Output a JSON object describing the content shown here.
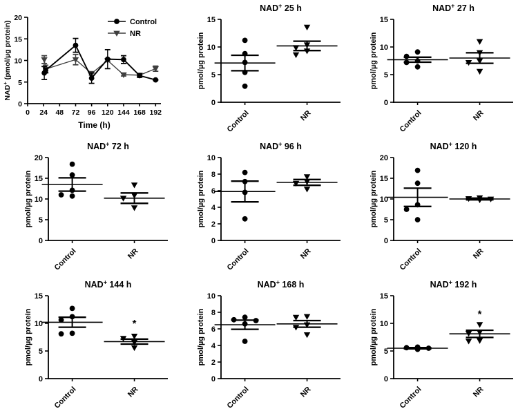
{
  "figure": {
    "description": "NAD+ levels, Control vs NR, time course and per-timepoint scatter plots",
    "colors": {
      "control": "#000000",
      "nr": "#3f3f3f",
      "axis": "#000000",
      "background": "#ffffff"
    },
    "legend": {
      "items": [
        "Control",
        "NR"
      ]
    }
  },
  "chart_data": [
    {
      "id": "timecourse",
      "type": "line",
      "title": "",
      "xlabel": "Time (h)",
      "ylabel": "NAD+ (pmol/µg protein)",
      "xlim": [
        0,
        200
      ],
      "ylim": [
        0,
        20
      ],
      "xticks": [
        0,
        24,
        48,
        72,
        96,
        120,
        144,
        168,
        192
      ],
      "yticks": [
        0,
        5,
        10,
        15,
        20
      ],
      "grid": false,
      "legend_position": "top-right",
      "series": [
        {
          "name": "Control",
          "marker": "circle",
          "color": "#000000",
          "x": [
            25,
            27,
            72,
            96,
            120,
            144,
            168,
            192
          ],
          "y": [
            7.1,
            7.7,
            13.5,
            5.9,
            10.3,
            10.2,
            6.5,
            5.5
          ],
          "sem": [
            1.5,
            0.5,
            1.6,
            1.2,
            2.2,
            0.9,
            0.4,
            0.1
          ]
        },
        {
          "name": "NR",
          "marker": "triangle-down",
          "color": "#3f3f3f",
          "x": [
            25,
            27,
            72,
            96,
            120,
            144,
            168,
            192
          ],
          "y": [
            10.2,
            8.0,
            10.2,
            7.0,
            10.0,
            6.7,
            6.6,
            8.1
          ],
          "sem": [
            0.9,
            0.9,
            1.2,
            0.4,
            0.2,
            0.3,
            0.4,
            0.6
          ]
        }
      ]
    },
    {
      "id": "nad-25h",
      "type": "scatter",
      "title": "NAD+ 25 h",
      "ylabel": "pmol/µg protein",
      "ylim": [
        0,
        15
      ],
      "yticks": [
        0,
        5,
        10,
        15
      ],
      "categories": [
        "Control",
        "NR"
      ],
      "groups": [
        {
          "name": "Control",
          "marker": "circle",
          "points": [
            11.2,
            8.8,
            7.2,
            5.4,
            2.9
          ],
          "mean": 7.1,
          "sem": 1.4
        },
        {
          "name": "NR",
          "marker": "triangle-down",
          "points": [
            13.6,
            10.4,
            9.9,
            9.3,
            8.6
          ],
          "mean": 10.2,
          "sem": 0.85
        }
      ],
      "annotations": []
    },
    {
      "id": "nad-27h",
      "type": "scatter",
      "title": "NAD+ 27 h",
      "ylabel": "pmol/µg protein",
      "ylim": [
        0,
        15
      ],
      "yticks": [
        0,
        5,
        10,
        15
      ],
      "categories": [
        "Control",
        "NR"
      ],
      "groups": [
        {
          "name": "Control",
          "marker": "circle",
          "points": [
            9.1,
            8.3,
            7.5,
            7.2,
            6.4
          ],
          "mean": 7.7,
          "sem": 0.45
        },
        {
          "name": "NR",
          "marker": "triangle-down",
          "points": [
            11.0,
            9.0,
            7.5,
            7.2,
            5.6
          ],
          "mean": 8.0,
          "sem": 0.95
        }
      ],
      "annotations": []
    },
    {
      "id": "nad-72h",
      "type": "scatter",
      "title": "NAD+ 72 h",
      "ylabel": "pmol/µg protein",
      "ylim": [
        0,
        20
      ],
      "yticks": [
        0,
        5,
        10,
        15,
        20
      ],
      "categories": [
        "Control",
        "NR"
      ],
      "groups": [
        {
          "name": "Control",
          "marker": "circle",
          "points": [
            18.4,
            15.8,
            12.1,
            11.0,
            10.7
          ],
          "mean": 13.5,
          "sem": 1.6
        },
        {
          "name": "NR",
          "marker": "triangle-down",
          "points": [
            13.4,
            10.9,
            10.2,
            7.9
          ],
          "mean": 10.2,
          "sem": 1.25
        }
      ],
      "annotations": []
    },
    {
      "id": "nad-96h",
      "type": "scatter",
      "title": "NAD+ 96 h",
      "ylabel": "pmol/µg protein",
      "ylim": [
        0,
        10
      ],
      "yticks": [
        0,
        2,
        4,
        6,
        8,
        10
      ],
      "categories": [
        "Control",
        "NR"
      ],
      "groups": [
        {
          "name": "Control",
          "marker": "circle",
          "points": [
            8.2,
            7.1,
            5.8,
            2.6
          ],
          "mean": 5.9,
          "sem": 1.25
        },
        {
          "name": "NR",
          "marker": "triangle-down",
          "points": [
            7.7,
            7.1,
            6.9,
            6.2
          ],
          "mean": 7.0,
          "sem": 0.35
        }
      ],
      "annotations": []
    },
    {
      "id": "nad-120h",
      "type": "scatter",
      "title": "NAD+ 120 h",
      "ylabel": "pmol/µg protein",
      "ylim": [
        0,
        20
      ],
      "yticks": [
        0,
        5,
        10,
        15,
        20
      ],
      "categories": [
        "Control",
        "NR"
      ],
      "groups": [
        {
          "name": "Control",
          "marker": "circle",
          "points": [
            16.9,
            13.8,
            8.6,
            7.5,
            5.0
          ],
          "mean": 10.4,
          "sem": 2.2
        },
        {
          "name": "NR",
          "marker": "triangle-down",
          "points": [
            10.3,
            10.1,
            10.0,
            9.8
          ],
          "mean": 10.0,
          "sem": 0.2
        }
      ],
      "annotations": []
    },
    {
      "id": "nad-144h",
      "type": "scatter",
      "title": "NAD+ 144 h",
      "ylabel": "pmol/µg protein",
      "ylim": [
        0,
        15
      ],
      "yticks": [
        0,
        5,
        10,
        15
      ],
      "categories": [
        "Control",
        "NR"
      ],
      "groups": [
        {
          "name": "Control",
          "marker": "circle",
          "points": [
            12.7,
            11.2,
            10.6,
            8.2,
            8.1
          ],
          "mean": 10.2,
          "sem": 0.9
        },
        {
          "name": "NR",
          "marker": "triangle-down",
          "points": [
            7.7,
            7.3,
            6.6,
            5.6
          ],
          "mean": 6.7,
          "sem": 0.45
        }
      ],
      "annotations": [
        {
          "text": "*",
          "category": "NR",
          "y": 10.0
        }
      ]
    },
    {
      "id": "nad-168h",
      "type": "scatter",
      "title": "NAD+ 168 h",
      "ylabel": "pmol/µg protein",
      "ylim": [
        0,
        10
      ],
      "yticks": [
        0,
        2,
        4,
        6,
        8,
        10
      ],
      "categories": [
        "Control",
        "NR"
      ],
      "groups": [
        {
          "name": "Control",
          "marker": "circle",
          "points": [
            7.4,
            7.1,
            7.0,
            6.6,
            4.5
          ],
          "mean": 6.5,
          "sem": 0.55
        },
        {
          "name": "NR",
          "marker": "triangle-down",
          "points": [
            7.5,
            7.4,
            6.5,
            6.2,
            5.3
          ],
          "mean": 6.6,
          "sem": 0.4
        }
      ],
      "annotations": []
    },
    {
      "id": "nad-192h",
      "type": "scatter",
      "title": "NAD+ 192 h",
      "ylabel": "pmol/µg protein",
      "ylim": [
        0,
        15
      ],
      "yticks": [
        0,
        5,
        10,
        15
      ],
      "categories": [
        "Control",
        "NR"
      ],
      "groups": [
        {
          "name": "Control",
          "marker": "circle",
          "points": [
            5.7,
            5.6,
            5.5,
            5.4,
            5.3
          ],
          "mean": 5.5,
          "sem": 0.1
        },
        {
          "name": "NR",
          "marker": "triangle-down",
          "points": [
            9.8,
            8.4,
            8.2,
            6.9,
            6.8
          ],
          "mean": 8.1,
          "sem": 0.65
        }
      ],
      "annotations": [
        {
          "text": "*",
          "category": "NR",
          "y": 11.7
        }
      ]
    }
  ]
}
